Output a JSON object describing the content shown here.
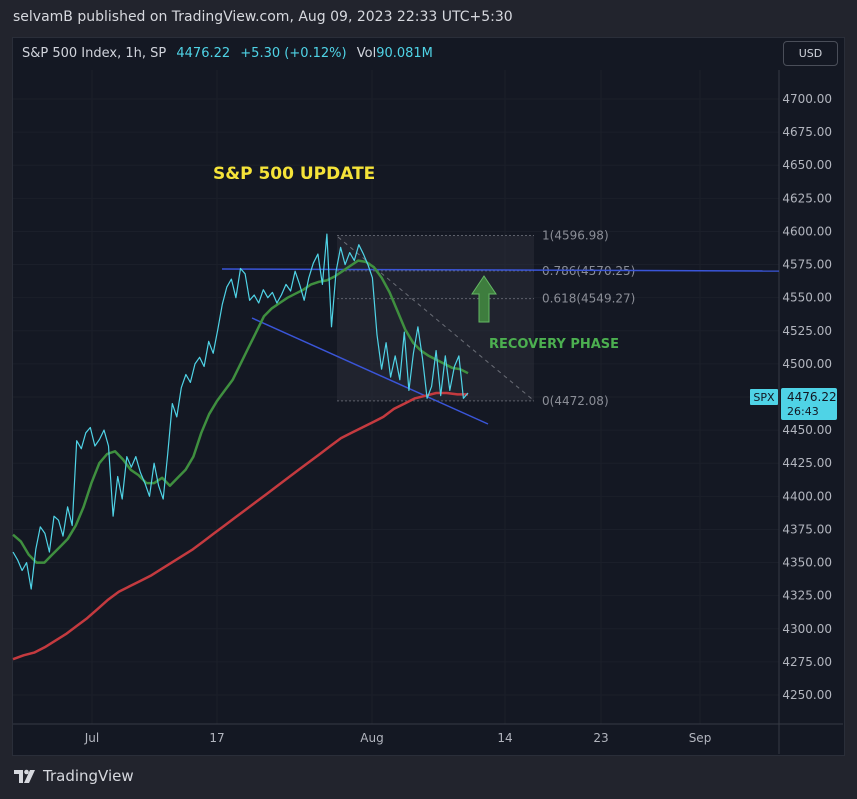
{
  "header": {
    "publish_line": "selvamB published on TradingView.com, Aug 09, 2023 22:33 UTC+5:30"
  },
  "legend": {
    "symbol": "S&P 500 Index, 1h, SP",
    "price": "4476.22",
    "change": "+5.30 (+0.12%)",
    "vol_label": "Vol",
    "vol_value": "90.081M"
  },
  "currency_button": "USD",
  "footer": {
    "brand": "TradingView"
  },
  "colors": {
    "price_line": "#4fd3e6",
    "ma_short": "#3f8f3f",
    "ma_long": "#c43a3f",
    "resistance": "#3a55d8",
    "title_text": "#f5e339",
    "annotation_text": "#4caf50",
    "label_bg": "#4fd3e6"
  },
  "chart_data": {
    "type": "line",
    "title": "S&P 500 UPDATE",
    "ylim": [
      4230,
      4720
    ],
    "y_ticks": [
      "4700.00",
      "4675.00",
      "4650.00",
      "4625.00",
      "4600.00",
      "4575.00",
      "4550.00",
      "4525.00",
      "4500.00",
      "4475.00",
      "4450.00",
      "4425.00",
      "4400.00",
      "4375.00",
      "4350.00",
      "4325.00",
      "4300.00",
      "4275.00",
      "4250.00"
    ],
    "x_tick_labels": [
      "Jul",
      "17",
      "Aug",
      "14",
      "23",
      "Sep"
    ],
    "price_label": {
      "symbol": "SPX",
      "price": "4476.22",
      "countdown": "26:43"
    },
    "fib_levels": [
      {
        "label": "1(4596.98)",
        "value": 4596.98
      },
      {
        "label": "0.786(4570.25)",
        "value": 4570.25
      },
      {
        "label": "0.618(4549.27)",
        "value": 4549.27
      },
      {
        "label": "0(4472.08)",
        "value": 4472.08
      }
    ],
    "annotations": [
      "RECOVERY PHASE"
    ],
    "series": [
      {
        "name": "price",
        "values": [
          4358,
          4352,
          4344,
          4350,
          4330,
          4360,
          4377,
          4372,
          4358,
          4385,
          4382,
          4370,
          4392,
          4378,
          4442,
          4436,
          4448,
          4452,
          4438,
          4443,
          4450,
          4438,
          4385,
          4415,
          4398,
          4430,
          4422,
          4430,
          4418,
          4410,
          4400,
          4425,
          4408,
          4398,
          4432,
          4470,
          4460,
          4482,
          4492,
          4486,
          4500,
          4505,
          4498,
          4517,
          4508,
          4526,
          4545,
          4558,
          4564,
          4550,
          4572,
          4568,
          4548,
          4552,
          4546,
          4556,
          4550,
          4554,
          4546,
          4552,
          4560,
          4555,
          4570,
          4560,
          4548,
          4565,
          4576,
          4583,
          4560,
          4598,
          4528,
          4570,
          4588,
          4575,
          4584,
          4578,
          4590,
          4583,
          4575,
          4565,
          4522,
          4496,
          4516,
          4490,
          4506,
          4488,
          4524,
          4480,
          4508,
          4528,
          4504,
          4474,
          4483,
          4510,
          4476,
          4506,
          4480,
          4498,
          4506,
          4474,
          4478
        ]
      },
      {
        "name": "ma_short",
        "values": [
          4371,
          4366,
          4356,
          4350,
          4350,
          4356,
          4362,
          4368,
          4378,
          4392,
          4410,
          4425,
          4432,
          4434,
          4428,
          4420,
          4416,
          4410,
          4410,
          4414,
          4408,
          4414,
          4420,
          4430,
          4448,
          4462,
          4472,
          4480,
          4488,
          4500,
          4512,
          4524,
          4536,
          4542,
          4546,
          4550,
          4553,
          4556,
          4560,
          4562,
          4563,
          4566,
          4570,
          4574,
          4578,
          4577,
          4573,
          4565,
          4554,
          4540,
          4526,
          4516,
          4510,
          4506,
          4503,
          4500,
          4497,
          4496,
          4493
        ]
      },
      {
        "name": "ma_long",
        "values": [
          4277,
          4280,
          4282,
          4286,
          4291,
          4296,
          4302,
          4308,
          4315,
          4322,
          4328,
          4332,
          4336,
          4340,
          4345,
          4350,
          4355,
          4360,
          4366,
          4372,
          4378,
          4384,
          4390,
          4396,
          4402,
          4408,
          4414,
          4420,
          4426,
          4432,
          4438,
          4444,
          4448,
          4452,
          4456,
          4460,
          4466,
          4470,
          4474,
          4476,
          4478,
          4478,
          4477,
          4477
        ]
      }
    ]
  }
}
